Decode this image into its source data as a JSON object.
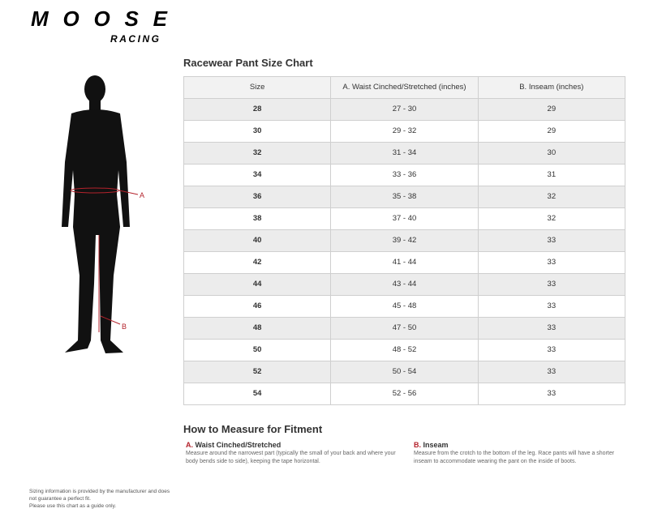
{
  "logo": {
    "brand": "MOOSE",
    "sub": "RACING"
  },
  "title": "Racewear Pant Size Chart",
  "table": {
    "headers": [
      "Size",
      "A. Waist Cinched/Stretched (inches)",
      "B. Inseam (inches)"
    ],
    "rows": [
      [
        "28",
        "27 - 30",
        "29"
      ],
      [
        "30",
        "29 - 32",
        "29"
      ],
      [
        "32",
        "31 - 34",
        "30"
      ],
      [
        "34",
        "33 - 36",
        "31"
      ],
      [
        "36",
        "35 - 38",
        "32"
      ],
      [
        "38",
        "37 - 40",
        "32"
      ],
      [
        "40",
        "39 - 42",
        "33"
      ],
      [
        "42",
        "41 - 44",
        "33"
      ],
      [
        "44",
        "43 - 44",
        "33"
      ],
      [
        "46",
        "45 - 48",
        "33"
      ],
      [
        "48",
        "47 - 50",
        "33"
      ],
      [
        "50",
        "48 - 52",
        "33"
      ],
      [
        "52",
        "50 - 54",
        "33"
      ],
      [
        "54",
        "52 - 56",
        "33"
      ]
    ]
  },
  "figure": {
    "label_a": "A",
    "label_b": "B"
  },
  "how": {
    "title": "How to Measure for Fitment",
    "a": {
      "letter": "A.",
      "heading": "Waist Cinched/Stretched",
      "text": "Measure around the narrowest part (typically the small of your back and where your body bends side to side), keeping the tape horizontal."
    },
    "b": {
      "letter": "B.",
      "heading": "Inseam",
      "text": "Measure from the crotch to the bottom of the leg. Race pants will have a shorter inseam to accommodate wearing the pant on the inside of boots."
    }
  },
  "footer": [
    "Sizing information is provided by the manufacturer and does not guarantee a perfect fit.",
    "Please use this chart as a guide only."
  ],
  "colors": {
    "accent": "#b4232c"
  }
}
